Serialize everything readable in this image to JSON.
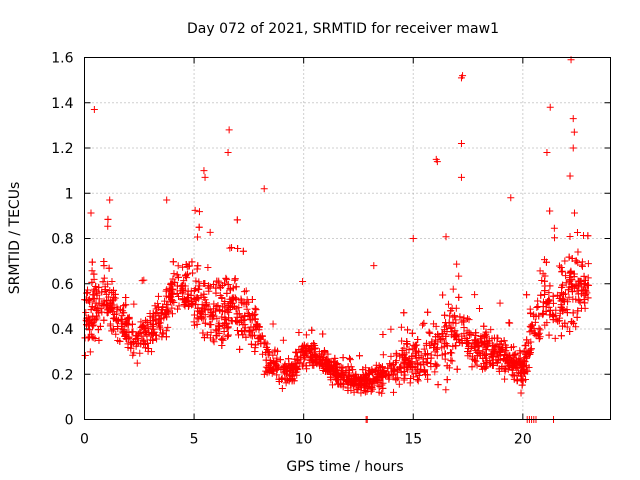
{
  "chart_data": {
    "type": "scatter",
    "title": "Day 072 of 2021, SRMTID for receiver maw1",
    "xlabel": "GPS time / hours",
    "ylabel": "SRMTID / TECUs",
    "xlim": [
      0,
      24
    ],
    "ylim": [
      0,
      1.6
    ],
    "xticks": [
      0,
      5,
      10,
      15,
      20
    ],
    "yticks": [
      0,
      0.2,
      0.4,
      0.6,
      0.8,
      1,
      1.2,
      1.4,
      1.6
    ],
    "xtick_labels": [
      "0",
      "5",
      "10",
      "15",
      "20"
    ],
    "ytick_labels": [
      "0",
      "0.2",
      "0.4",
      "0.6",
      "0.8",
      "1",
      "1.2",
      "1.4",
      "1.6"
    ],
    "grid": true,
    "marker": "plus",
    "color": "#ff0000",
    "series": [
      {
        "name": "SRMTID",
        "envelope_x": [
          0,
          0.5,
          1,
          1.5,
          2,
          2.5,
          3,
          3.5,
          4,
          4.5,
          5,
          5.5,
          6,
          6.5,
          7,
          7.5,
          8,
          8.5,
          9,
          9.5,
          10,
          10.5,
          11,
          11.5,
          12,
          12.5,
          13,
          13.5,
          14,
          14.5,
          15,
          15.5,
          16,
          16.5,
          17,
          17.5,
          18,
          18.5,
          19,
          19.5,
          20,
          20.5,
          21,
          21.5,
          22,
          22.5,
          23
        ],
        "envelope_mean": [
          0.45,
          0.5,
          0.55,
          0.45,
          0.38,
          0.35,
          0.4,
          0.45,
          0.55,
          0.6,
          0.55,
          0.5,
          0.45,
          0.5,
          0.48,
          0.45,
          0.35,
          0.25,
          0.2,
          0.22,
          0.3,
          0.28,
          0.25,
          0.2,
          0.18,
          0.16,
          0.18,
          0.2,
          0.22,
          0.25,
          0.28,
          0.25,
          0.3,
          0.35,
          0.4,
          0.35,
          0.32,
          0.3,
          0.28,
          0.25,
          0.2,
          0.45,
          0.55,
          0.45,
          0.6,
          0.55,
          0.6
        ],
        "envelope_spread": [
          0.3,
          0.3,
          0.25,
          0.18,
          0.15,
          0.15,
          0.2,
          0.2,
          0.22,
          0.2,
          0.25,
          0.25,
          0.25,
          0.3,
          0.25,
          0.2,
          0.15,
          0.12,
          0.1,
          0.12,
          0.12,
          0.12,
          0.1,
          0.1,
          0.08,
          0.08,
          0.1,
          0.12,
          0.12,
          0.15,
          0.2,
          0.15,
          0.25,
          0.3,
          0.3,
          0.2,
          0.18,
          0.15,
          0.15,
          0.15,
          0.12,
          0.3,
          0.35,
          0.25,
          0.4,
          0.3,
          0.2
        ]
      }
    ],
    "outliers": [
      {
        "x": 0.45,
        "y": 1.37
      },
      {
        "x": 1.15,
        "y": 0.97
      },
      {
        "x": 3.75,
        "y": 0.97
      },
      {
        "x": 5.45,
        "y": 1.1
      },
      {
        "x": 5.5,
        "y": 1.07
      },
      {
        "x": 6.6,
        "y": 1.28
      },
      {
        "x": 6.55,
        "y": 1.18
      },
      {
        "x": 8.2,
        "y": 1.02
      },
      {
        "x": 9.95,
        "y": 0.61
      },
      {
        "x": 13.2,
        "y": 0.68
      },
      {
        "x": 15.0,
        "y": 0.8
      },
      {
        "x": 16.05,
        "y": 1.15
      },
      {
        "x": 16.1,
        "y": 1.14
      },
      {
        "x": 17.2,
        "y": 1.51
      },
      {
        "x": 17.25,
        "y": 1.52
      },
      {
        "x": 17.2,
        "y": 1.22
      },
      {
        "x": 17.2,
        "y": 1.07
      },
      {
        "x": 19.45,
        "y": 0.98
      },
      {
        "x": 21.1,
        "y": 1.18
      },
      {
        "x": 21.25,
        "y": 1.38
      },
      {
        "x": 22.2,
        "y": 1.59
      },
      {
        "x": 22.3,
        "y": 1.33
      },
      {
        "x": 22.35,
        "y": 1.27
      },
      {
        "x": 22.3,
        "y": 1.2
      },
      {
        "x": 12.85,
        "y": 0.0
      },
      {
        "x": 12.9,
        "y": 0.0
      },
      {
        "x": 20.2,
        "y": 0.0
      },
      {
        "x": 20.3,
        "y": 0.0
      },
      {
        "x": 20.4,
        "y": 0.0
      },
      {
        "x": 20.5,
        "y": 0.0
      },
      {
        "x": 20.6,
        "y": 0.0
      },
      {
        "x": 21.4,
        "y": 0.0
      }
    ]
  }
}
